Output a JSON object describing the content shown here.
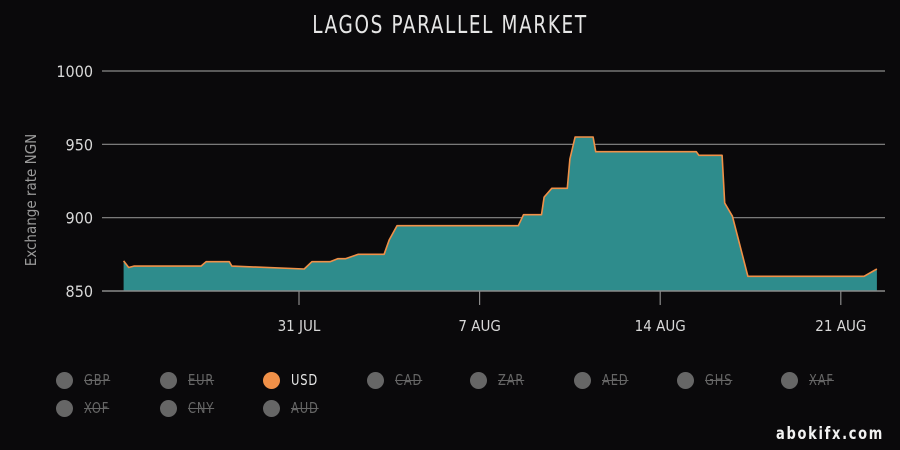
{
  "header": {
    "title": "LAGOS PARALLEL MARKET"
  },
  "watermark": "abokifx.com",
  "colors": {
    "background": "#0a090b",
    "area_fill": "#2e8c8c",
    "line": "#f09048",
    "grid": "#8a8a8a",
    "legend_active": "#f09048",
    "legend_inactive": "#666666"
  },
  "legend": {
    "items": [
      {
        "label": "GBP",
        "active": false
      },
      {
        "label": "EUR",
        "active": false
      },
      {
        "label": "USD",
        "active": true
      },
      {
        "label": "CAD",
        "active": false
      },
      {
        "label": "ZAR",
        "active": false
      },
      {
        "label": "AED",
        "active": false
      },
      {
        "label": "GHS",
        "active": false
      },
      {
        "label": "XAF",
        "active": false
      },
      {
        "label": "XOF",
        "active": false
      },
      {
        "label": "CNY",
        "active": false
      },
      {
        "label": "AUD",
        "active": false
      }
    ]
  },
  "chart_data": {
    "type": "area",
    "title": "LAGOS PARALLEL MARKET",
    "xlabel": "",
    "ylabel": "Exchange rate NGN",
    "ylim": [
      850,
      1000
    ],
    "yticks": [
      850,
      900,
      950,
      1000
    ],
    "xticks": [
      {
        "label": "31 JUL",
        "day": 0
      },
      {
        "label": "7 AUG",
        "day": 7
      },
      {
        "label": "14 AUG",
        "day": 14
      },
      {
        "label": "21 AUG",
        "day": 21
      }
    ],
    "grid": true,
    "legend_position": "bottom",
    "series": [
      {
        "name": "USD",
        "x_days_from_31_jul": [
          -6.8,
          -6.6,
          -6.4,
          -3.8,
          -3.6,
          -2.7,
          -2.6,
          0.2,
          0.5,
          1.2,
          1.5,
          1.8,
          2.3,
          3.3,
          3.5,
          3.8,
          8.5,
          8.7,
          9.4,
          9.5,
          9.8,
          10.4,
          10.5,
          10.7,
          11.4,
          11.5,
          15.4,
          15.5,
          16.4,
          16.5,
          16.8,
          17.4,
          21.9,
          22.4
        ],
        "values": [
          870.5,
          866,
          867,
          867,
          870,
          870,
          867,
          865,
          870,
          870,
          872,
          872,
          875,
          875,
          885,
          894.5,
          894.5,
          902,
          902,
          914,
          920,
          920,
          940,
          955,
          955,
          945,
          945,
          942.5,
          942.5,
          910,
          901,
          860,
          860,
          865
        ]
      }
    ]
  }
}
